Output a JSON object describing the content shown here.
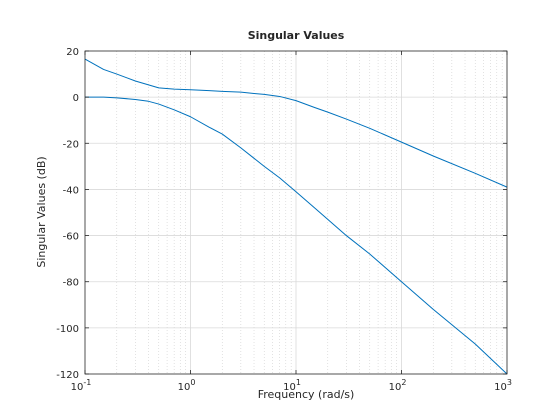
{
  "chart_data": {
    "type": "line",
    "title": "Singular Values",
    "xlabel": "Frequency (rad/s)",
    "ylabel": "Singular Values (dB)",
    "x_scale": "log",
    "xlim": [
      0.1,
      1000
    ],
    "ylim": [
      -120,
      20
    ],
    "grid": true,
    "minor_grid": true,
    "x_tick_values": [
      0.1,
      1,
      10,
      100,
      1000
    ],
    "x_tick_labels": [
      {
        "base": "10",
        "exp": "-1"
      },
      {
        "base": "10",
        "exp": "0"
      },
      {
        "base": "10",
        "exp": "1"
      },
      {
        "base": "10",
        "exp": "2"
      },
      {
        "base": "10",
        "exp": "3"
      }
    ],
    "y_ticks": [
      20,
      0,
      -20,
      -40,
      -60,
      -80,
      -100,
      -120
    ],
    "series": [
      {
        "color": "#0072BD",
        "points": [
          [
            0.1,
            16.5
          ],
          [
            0.15,
            12
          ],
          [
            0.2,
            10
          ],
          [
            0.3,
            7
          ],
          [
            0.5,
            4
          ],
          [
            0.7,
            3.5
          ],
          [
            1,
            3.2
          ],
          [
            1.5,
            2.8
          ],
          [
            2,
            2.5
          ],
          [
            3,
            2.2
          ],
          [
            4,
            1.6
          ],
          [
            5,
            1.2
          ],
          [
            7,
            0.3
          ],
          [
            10,
            -1.5
          ],
          [
            15,
            -4.5
          ],
          [
            20,
            -6.5
          ],
          [
            30,
            -9.5
          ],
          [
            50,
            -13.5
          ],
          [
            100,
            -19.5
          ],
          [
            200,
            -25.5
          ],
          [
            500,
            -33
          ],
          [
            1000,
            -39
          ]
        ]
      },
      {
        "color": "#0072BD",
        "points": [
          [
            0.1,
            0
          ],
          [
            0.15,
            0
          ],
          [
            0.2,
            -0.3
          ],
          [
            0.3,
            -1
          ],
          [
            0.4,
            -1.8
          ],
          [
            0.5,
            -3
          ],
          [
            0.7,
            -5.5
          ],
          [
            1,
            -8.5
          ],
          [
            1.5,
            -13
          ],
          [
            2,
            -16
          ],
          [
            3,
            -22
          ],
          [
            5,
            -30
          ],
          [
            7,
            -35
          ],
          [
            10,
            -41
          ],
          [
            15,
            -48
          ],
          [
            20,
            -53
          ],
          [
            30,
            -60
          ],
          [
            50,
            -68
          ],
          [
            100,
            -80
          ],
          [
            200,
            -92
          ],
          [
            500,
            -107
          ],
          [
            1000,
            -120
          ]
        ]
      }
    ]
  }
}
